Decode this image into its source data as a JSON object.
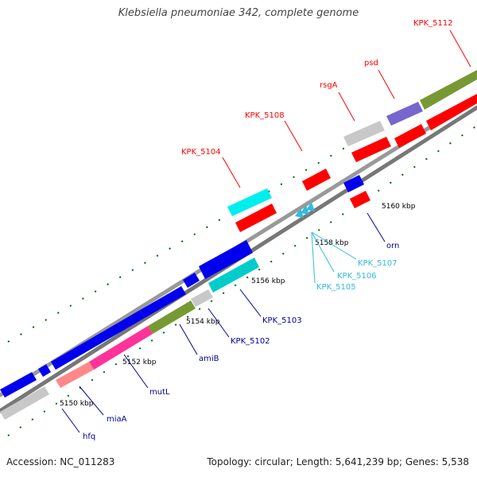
{
  "title": "Klebsiella pneumoniae 342, complete genome",
  "footer": {
    "accession": "Accession: NC_011283",
    "summary": "Topology: circular; Length: 5,641,239 bp; Genes: 5,538"
  },
  "scale_labels": [
    {
      "text": "5150 kbp"
    },
    {
      "text": "5152 kbp"
    },
    {
      "text": "5154 kbp"
    },
    {
      "text": "5156 kbp"
    },
    {
      "text": "5158 kbp"
    },
    {
      "text": "5160 kbp"
    }
  ],
  "genes_top": [
    {
      "name": "KPK_5104"
    },
    {
      "name": "KPK_5108"
    },
    {
      "name": "rsgA"
    },
    {
      "name": "psd"
    },
    {
      "name": "KPK_5112"
    }
  ],
  "genes_bottom": [
    {
      "name": "hfq"
    },
    {
      "name": "miaA"
    },
    {
      "name": "mutL"
    },
    {
      "name": "amiB"
    },
    {
      "name": "KPK_5102"
    },
    {
      "name": "KPK_5103"
    },
    {
      "name": "orn"
    },
    {
      "name": "KPK_5107"
    },
    {
      "name": "KPK_5106"
    },
    {
      "name": "KPK_5105"
    }
  ],
  "colors": {
    "top_label": "#ff0000",
    "bottom_label": "#000099",
    "cyan_label": "#33bbdd",
    "tick": "#006600",
    "backbone": "#888888",
    "red": "#ff0000",
    "blue": "#0000ee",
    "cyan": "#00eeee",
    "teal": "#00cccc",
    "olive": "#779933",
    "pink": "#ff3399",
    "salmon": "#ff8888",
    "gray": "#c8c8c8",
    "purple": "#7766cc"
  }
}
